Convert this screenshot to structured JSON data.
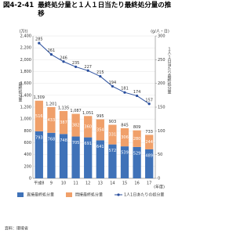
{
  "chart_data": {
    "type": "bar",
    "figure_number": "図4-2-41",
    "title": "最終処分量と１人１日当たり最終処分量の推移",
    "y_unit": "(万t)",
    "y_label": "最終処分量",
    "y2_unit": "(g/人・日)",
    "y2_label": "１人１日当たり最終処分量",
    "x_unit": "(年度)",
    "categories": [
      "平成8",
      "9",
      "10",
      "11",
      "12",
      "13",
      "14",
      "15",
      "16",
      "17"
    ],
    "series": [
      {
        "name": "直接最終処分量",
        "type": "bar",
        "color": "#3f72b8",
        "values": [
          793,
          768,
          748,
          705,
          691,
          641,
          572,
          539,
          529,
          489
        ]
      },
      {
        "name": "間接最終処分量",
        "type": "bar",
        "color": "#f0a06a",
        "values": [
          516,
          433,
          387,
          382,
          360,
          354,
          331,
          306,
          280,
          244
        ]
      },
      {
        "name": "1人1日あたりの処分量",
        "type": "line",
        "axis": "y2",
        "color": "#2a4f9e",
        "values": [
          285,
          261,
          246,
          235,
          227,
          215,
          194,
          181,
          174,
          157
        ]
      }
    ],
    "totals": {
      "values": [
        1309,
        1201,
        1135,
        1087,
        1051,
        995,
        903,
        845,
        809,
        733
      ],
      "value_labels": [
        "1,309",
        "1,201",
        "1,135",
        "1,087",
        "1,051",
        "995",
        "903",
        "845",
        "809",
        "733"
      ]
    },
    "ylim": [
      0,
      2400
    ],
    "yticks": [
      0,
      200,
      400,
      600,
      800,
      {
        "value": 1000,
        "label": "1,000"
      },
      {
        "value": 1200,
        "label": "1,200"
      },
      {
        "value": 1400,
        "label": "1,400"
      },
      {
        "value": 1600,
        "label": "1,600"
      },
      {
        "value": 1800,
        "label": "1,800"
      },
      {
        "value": 2000,
        "label": "2,000"
      },
      {
        "value": 2200,
        "label": "2,200"
      },
      {
        "value": 2400,
        "label": "2,400"
      }
    ],
    "y2lim": [
      0,
      300
    ],
    "y2ticks": [
      0,
      50,
      100,
      150,
      200,
      250,
      300
    ],
    "grid": true,
    "source": "資料：環境省"
  }
}
